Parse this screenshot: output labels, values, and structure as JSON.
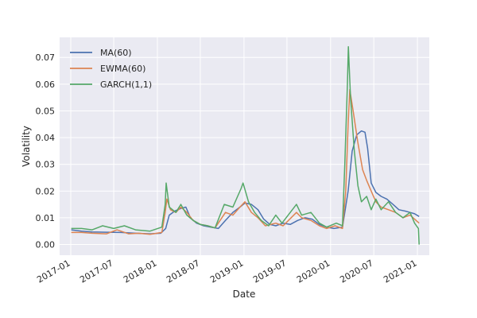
{
  "chart_data": {
    "type": "line",
    "xlabel": "Date",
    "ylabel": "Volatility",
    "xlim": [
      "2016-11-15",
      "2021-02-20"
    ],
    "ylim": [
      -0.004,
      0.0775
    ],
    "x_ticks": [
      "2017-01",
      "2017-07",
      "2018-01",
      "2018-07",
      "2019-01",
      "2019-07",
      "2020-01",
      "2020-07",
      "2021-01"
    ],
    "y_ticks": [
      "0.00",
      "0.01",
      "0.02",
      "0.03",
      "0.04",
      "0.05",
      "0.06",
      "0.07"
    ],
    "y_tick_values": [
      0.0,
      0.01,
      0.02,
      0.03,
      0.04,
      0.05,
      0.06,
      0.07
    ],
    "grid": true,
    "background": "#eaeaf2",
    "legend_position": "upper-left",
    "series": [
      {
        "name": "MA(60)",
        "color": "#4c72b0",
        "points": [
          [
            "2017-01-03",
            0.0055
          ],
          [
            "2017-02-15",
            0.005
          ],
          [
            "2017-04-01",
            0.0047
          ],
          [
            "2017-06-01",
            0.0046
          ],
          [
            "2017-08-01",
            0.0045
          ],
          [
            "2017-10-01",
            0.0042
          ],
          [
            "2017-12-01",
            0.004
          ],
          [
            "2018-01-15",
            0.0042
          ],
          [
            "2018-02-05",
            0.006
          ],
          [
            "2018-02-20",
            0.011
          ],
          [
            "2018-03-15",
            0.0125
          ],
          [
            "2018-04-10",
            0.0135
          ],
          [
            "2018-05-01",
            0.014
          ],
          [
            "2018-05-20",
            0.01
          ],
          [
            "2018-06-15",
            0.008
          ],
          [
            "2018-07-15",
            0.007
          ],
          [
            "2018-08-15",
            0.0065
          ],
          [
            "2018-09-15",
            0.006
          ],
          [
            "2018-10-15",
            0.009
          ],
          [
            "2018-11-15",
            0.012
          ],
          [
            "2018-12-15",
            0.014
          ],
          [
            "2019-01-05",
            0.0155
          ],
          [
            "2019-02-01",
            0.015
          ],
          [
            "2019-03-01",
            0.013
          ],
          [
            "2019-03-25",
            0.0095
          ],
          [
            "2019-04-20",
            0.0075
          ],
          [
            "2019-05-15",
            0.007
          ],
          [
            "2019-06-15",
            0.008
          ],
          [
            "2019-07-15",
            0.0075
          ],
          [
            "2019-08-15",
            0.009
          ],
          [
            "2019-09-15",
            0.01
          ],
          [
            "2019-10-15",
            0.0095
          ],
          [
            "2019-11-15",
            0.0075
          ],
          [
            "2019-12-15",
            0.0065
          ],
          [
            "2020-01-15",
            0.006
          ],
          [
            "2020-02-20",
            0.0065
          ],
          [
            "2020-03-15",
            0.02
          ],
          [
            "2020-04-01",
            0.035
          ],
          [
            "2020-04-20",
            0.041
          ],
          [
            "2020-05-10",
            0.0425
          ],
          [
            "2020-05-25",
            0.042
          ],
          [
            "2020-06-05",
            0.036
          ],
          [
            "2020-06-20",
            0.023
          ],
          [
            "2020-07-10",
            0.0195
          ],
          [
            "2020-08-01",
            0.018
          ],
          [
            "2020-08-25",
            0.017
          ],
          [
            "2020-09-20",
            0.015
          ],
          [
            "2020-10-15",
            0.013
          ],
          [
            "2020-11-10",
            0.0125
          ],
          [
            "2020-12-01",
            0.012
          ],
          [
            "2020-12-20",
            0.0115
          ],
          [
            "2021-01-08",
            0.0105
          ]
        ]
      },
      {
        "name": "EWMA(60)",
        "color": "#dd8452",
        "points": [
          [
            "2017-01-03",
            0.0045
          ],
          [
            "2017-02-15",
            0.0045
          ],
          [
            "2017-04-01",
            0.0042
          ],
          [
            "2017-06-01",
            0.004
          ],
          [
            "2017-07-15",
            0.0055
          ],
          [
            "2017-09-01",
            0.004
          ],
          [
            "2017-10-15",
            0.0042
          ],
          [
            "2017-12-01",
            0.0038
          ],
          [
            "2018-01-20",
            0.0045
          ],
          [
            "2018-02-03",
            0.012
          ],
          [
            "2018-02-10",
            0.017
          ],
          [
            "2018-02-25",
            0.013
          ],
          [
            "2018-03-20",
            0.012
          ],
          [
            "2018-04-10",
            0.014
          ],
          [
            "2018-05-05",
            0.012
          ],
          [
            "2018-06-01",
            0.009
          ],
          [
            "2018-07-01",
            0.0075
          ],
          [
            "2018-08-01",
            0.007
          ],
          [
            "2018-09-01",
            0.0062
          ],
          [
            "2018-10-15",
            0.012
          ],
          [
            "2018-11-15",
            0.011
          ],
          [
            "2018-12-15",
            0.014
          ],
          [
            "2019-01-05",
            0.016
          ],
          [
            "2019-02-01",
            0.012
          ],
          [
            "2019-03-01",
            0.01
          ],
          [
            "2019-04-01",
            0.007
          ],
          [
            "2019-05-15",
            0.008
          ],
          [
            "2019-06-15",
            0.007
          ],
          [
            "2019-08-10",
            0.012
          ],
          [
            "2019-09-01",
            0.01
          ],
          [
            "2019-10-10",
            0.009
          ],
          [
            "2019-11-15",
            0.007
          ],
          [
            "2019-12-15",
            0.006
          ],
          [
            "2020-01-20",
            0.007
          ],
          [
            "2020-02-20",
            0.006
          ],
          [
            "2020-03-05",
            0.02
          ],
          [
            "2020-03-15",
            0.045
          ],
          [
            "2020-03-22",
            0.058
          ],
          [
            "2020-04-05",
            0.05
          ],
          [
            "2020-04-25",
            0.038
          ],
          [
            "2020-05-15",
            0.028
          ],
          [
            "2020-06-01",
            0.024
          ],
          [
            "2020-06-20",
            0.02
          ],
          [
            "2020-07-10",
            0.016
          ],
          [
            "2020-08-01",
            0.014
          ],
          [
            "2020-09-01",
            0.013
          ],
          [
            "2020-10-01",
            0.012
          ],
          [
            "2020-11-01",
            0.01
          ],
          [
            "2020-12-01",
            0.011
          ],
          [
            "2021-01-08",
            0.008
          ]
        ]
      },
      {
        "name": "GARCH(1,1)",
        "color": "#55a868",
        "points": [
          [
            "2017-01-03",
            0.006
          ],
          [
            "2017-02-15",
            0.006
          ],
          [
            "2017-04-01",
            0.0055
          ],
          [
            "2017-05-15",
            0.007
          ],
          [
            "2017-07-01",
            0.006
          ],
          [
            "2017-08-15",
            0.007
          ],
          [
            "2017-10-01",
            0.0055
          ],
          [
            "2017-12-01",
            0.005
          ],
          [
            "2018-01-20",
            0.0065
          ],
          [
            "2018-02-03",
            0.015
          ],
          [
            "2018-02-07",
            0.023
          ],
          [
            "2018-02-20",
            0.014
          ],
          [
            "2018-03-20",
            0.012
          ],
          [
            "2018-04-10",
            0.015
          ],
          [
            "2018-05-05",
            0.011
          ],
          [
            "2018-06-01",
            0.009
          ],
          [
            "2018-07-01",
            0.0075
          ],
          [
            "2018-08-01",
            0.007
          ],
          [
            "2018-09-01",
            0.0062
          ],
          [
            "2018-10-10",
            0.015
          ],
          [
            "2018-11-15",
            0.014
          ],
          [
            "2018-12-20",
            0.021
          ],
          [
            "2018-12-28",
            0.023
          ],
          [
            "2019-01-20",
            0.016
          ],
          [
            "2019-02-15",
            0.012
          ],
          [
            "2019-03-15",
            0.009
          ],
          [
            "2019-04-15",
            0.007
          ],
          [
            "2019-05-15",
            0.011
          ],
          [
            "2019-06-10",
            0.008
          ],
          [
            "2019-08-10",
            0.015
          ],
          [
            "2019-09-01",
            0.011
          ],
          [
            "2019-10-10",
            0.012
          ],
          [
            "2019-11-15",
            0.008
          ],
          [
            "2019-12-15",
            0.0065
          ],
          [
            "2020-01-25",
            0.008
          ],
          [
            "2020-02-20",
            0.007
          ],
          [
            "2020-03-01",
            0.03
          ],
          [
            "2020-03-12",
            0.06
          ],
          [
            "2020-03-16",
            0.074
          ],
          [
            "2020-03-25",
            0.055
          ],
          [
            "2020-04-10",
            0.035
          ],
          [
            "2020-04-25",
            0.022
          ],
          [
            "2020-05-10",
            0.016
          ],
          [
            "2020-06-01",
            0.018
          ],
          [
            "2020-06-20",
            0.013
          ],
          [
            "2020-07-10",
            0.017
          ],
          [
            "2020-08-01",
            0.013
          ],
          [
            "2020-09-01",
            0.016
          ],
          [
            "2020-10-01",
            0.012
          ],
          [
            "2020-11-01",
            0.01
          ],
          [
            "2020-12-01",
            0.012
          ],
          [
            "2020-12-20",
            0.008
          ],
          [
            "2021-01-05",
            0.006
          ],
          [
            "2021-01-08",
            0.0
          ]
        ]
      }
    ]
  }
}
